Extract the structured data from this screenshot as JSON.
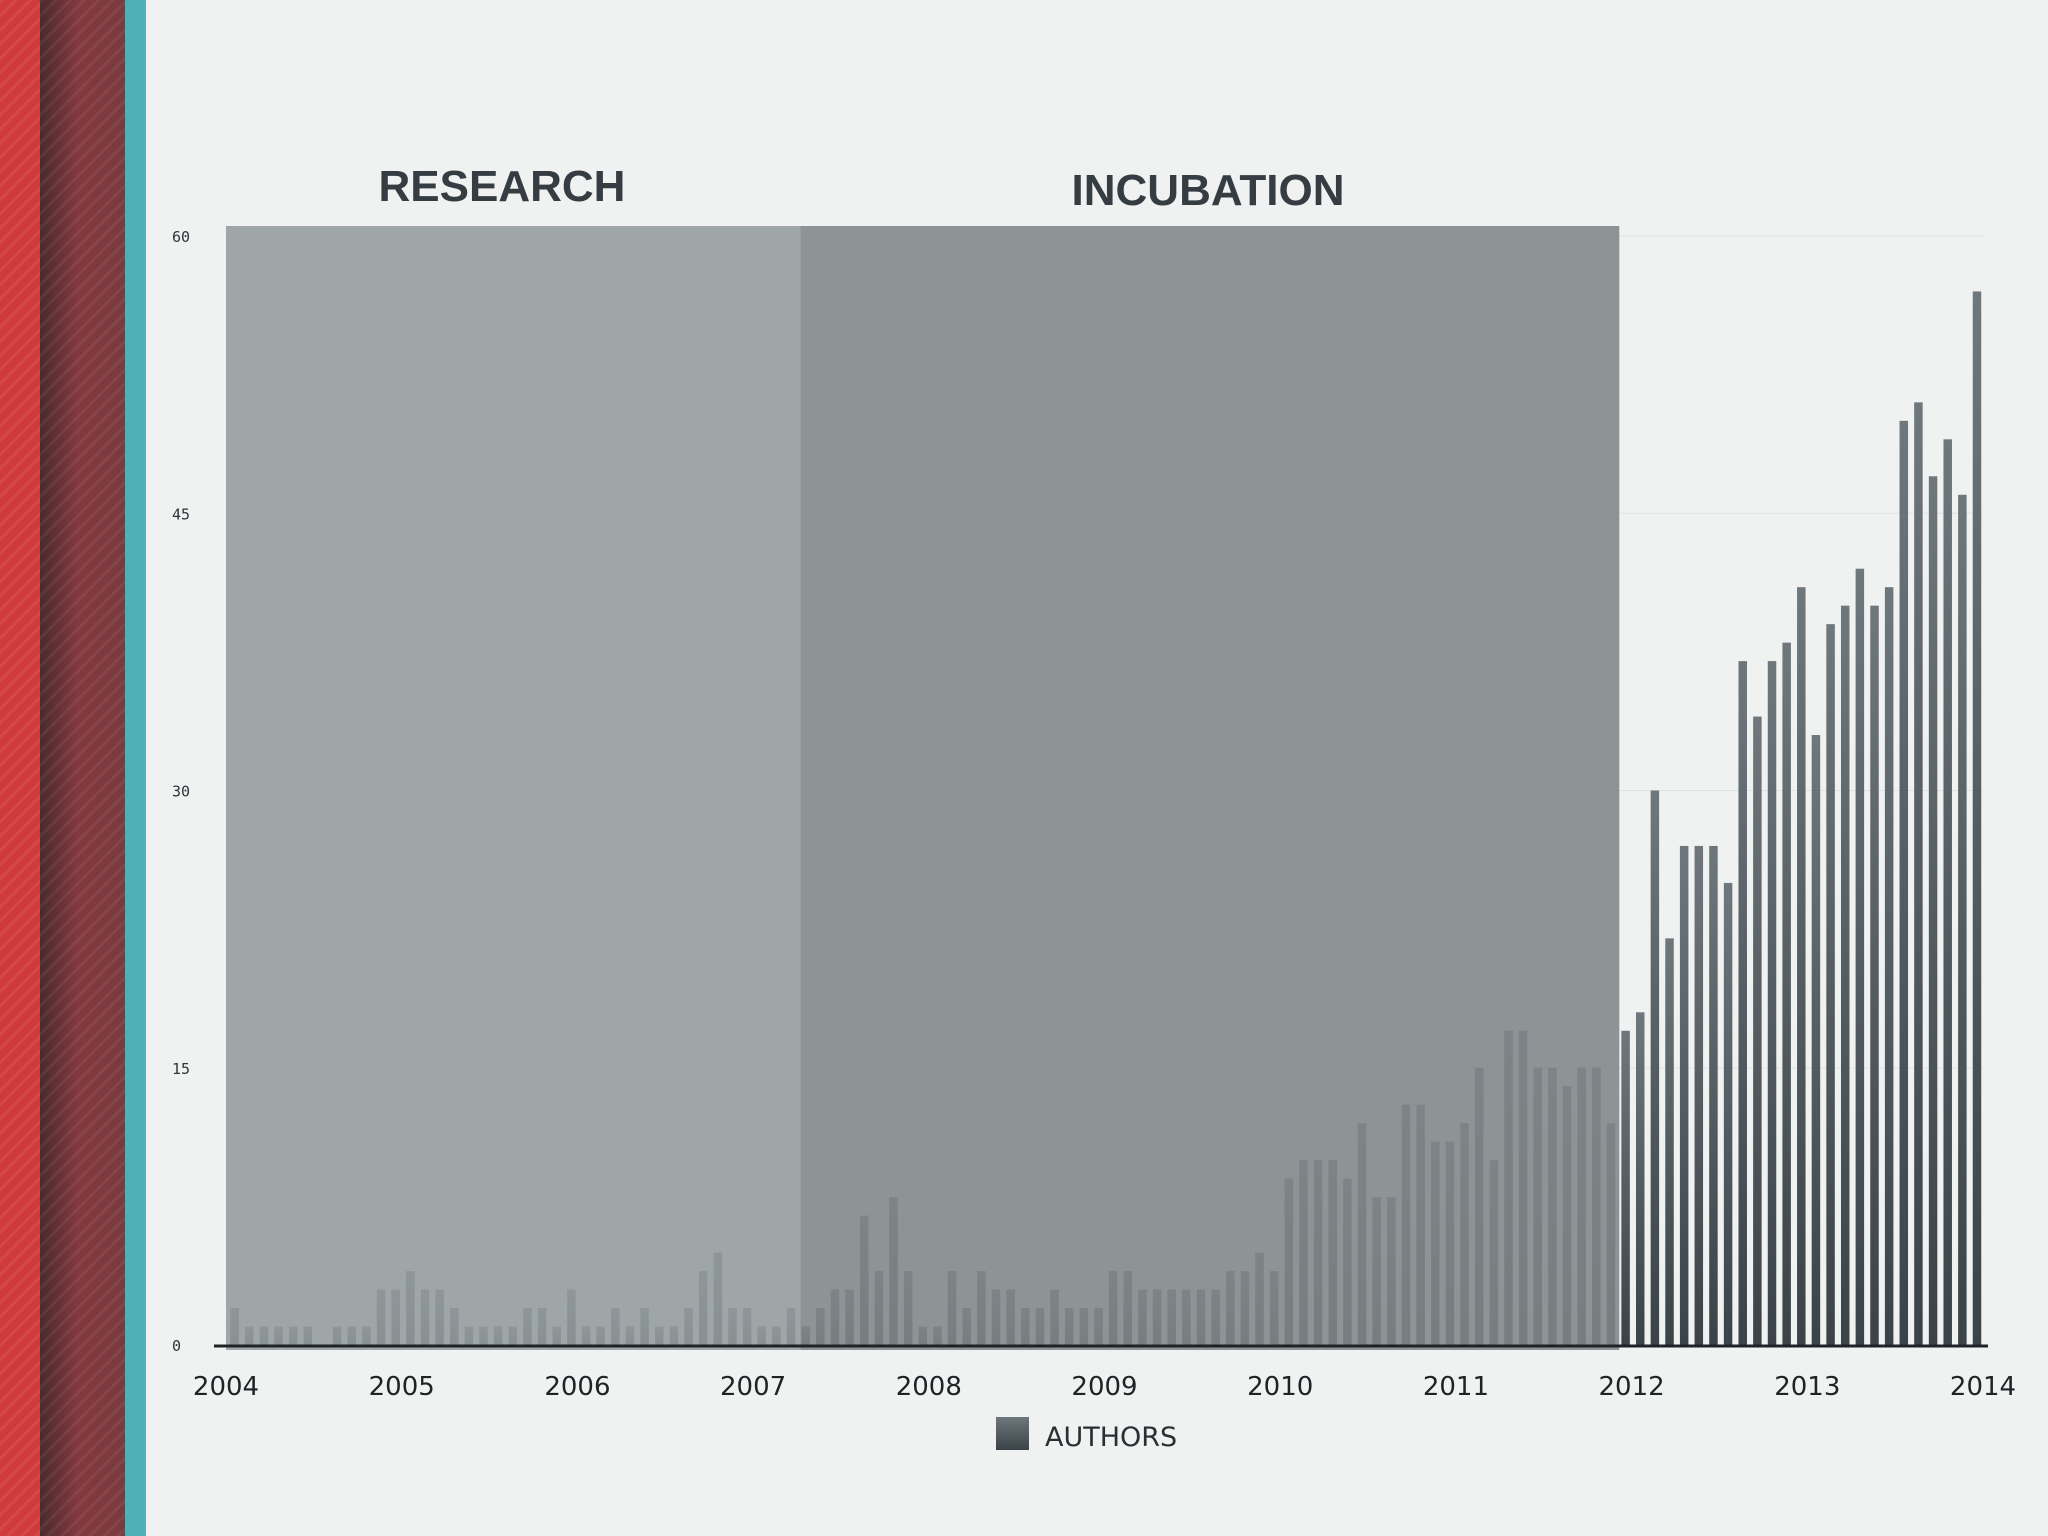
{
  "colors": {
    "background": "#f0f1f1",
    "research_band": "#939b9d",
    "incubation_band": "#7f8587",
    "bar_top": "#6e777c",
    "bar_bottom": "#3b4349",
    "gridline": "#dfe2e3",
    "axis": "#1f2326",
    "stripe_red": "#d13a3a",
    "stripe_maroon": "#7a3a3f",
    "stripe_teal": "#4fb0b8"
  },
  "chart_data": {
    "type": "bar",
    "title": "",
    "xlabel": "",
    "ylabel": "",
    "ylim": [
      0,
      60
    ],
    "xlim": [
      2004,
      2014
    ],
    "grid": true,
    "y_ticks": [
      "0",
      "15",
      "30",
      "45",
      "60"
    ],
    "x_ticks": [
      "2004",
      "2005",
      "2006",
      "2007",
      "2008",
      "2009",
      "2010",
      "2011",
      "2012",
      "2013",
      "2014"
    ],
    "legend": {
      "label": "AUTHORS",
      "position": "bottom-center"
    },
    "phases": [
      {
        "label": "RESEARCH",
        "start": 2004.0,
        "end": 2007.27
      },
      {
        "label": "INCUBATION",
        "start": 2007.27,
        "end": 2011.93
      }
    ],
    "series": [
      {
        "name": "AUTHORS",
        "interval": "monthly",
        "start": 2004.0,
        "values": [
          2,
          1,
          1,
          1,
          1,
          1,
          0,
          1,
          1,
          1,
          3,
          3,
          4,
          3,
          3,
          2,
          1,
          1,
          1,
          1,
          2,
          2,
          1,
          3,
          1,
          1,
          2,
          1,
          2,
          1,
          1,
          2,
          4,
          5,
          2,
          2,
          1,
          1,
          2,
          1,
          2,
          3,
          3,
          7,
          4,
          8,
          4,
          1,
          1,
          4,
          2,
          4,
          3,
          3,
          2,
          2,
          3,
          2,
          2,
          2,
          4,
          4,
          3,
          3,
          3,
          3,
          3,
          3,
          4,
          4,
          5,
          4,
          9,
          10,
          10,
          10,
          9,
          12,
          8,
          8,
          13,
          13,
          11,
          11,
          12,
          15,
          10,
          17,
          17,
          15,
          15,
          14,
          15,
          15,
          12,
          17,
          18,
          30,
          22,
          27,
          27,
          27,
          25,
          37,
          34,
          37,
          38,
          41,
          33,
          39,
          40,
          42,
          40,
          41,
          50,
          51,
          47,
          49,
          46,
          57
        ]
      }
    ]
  }
}
